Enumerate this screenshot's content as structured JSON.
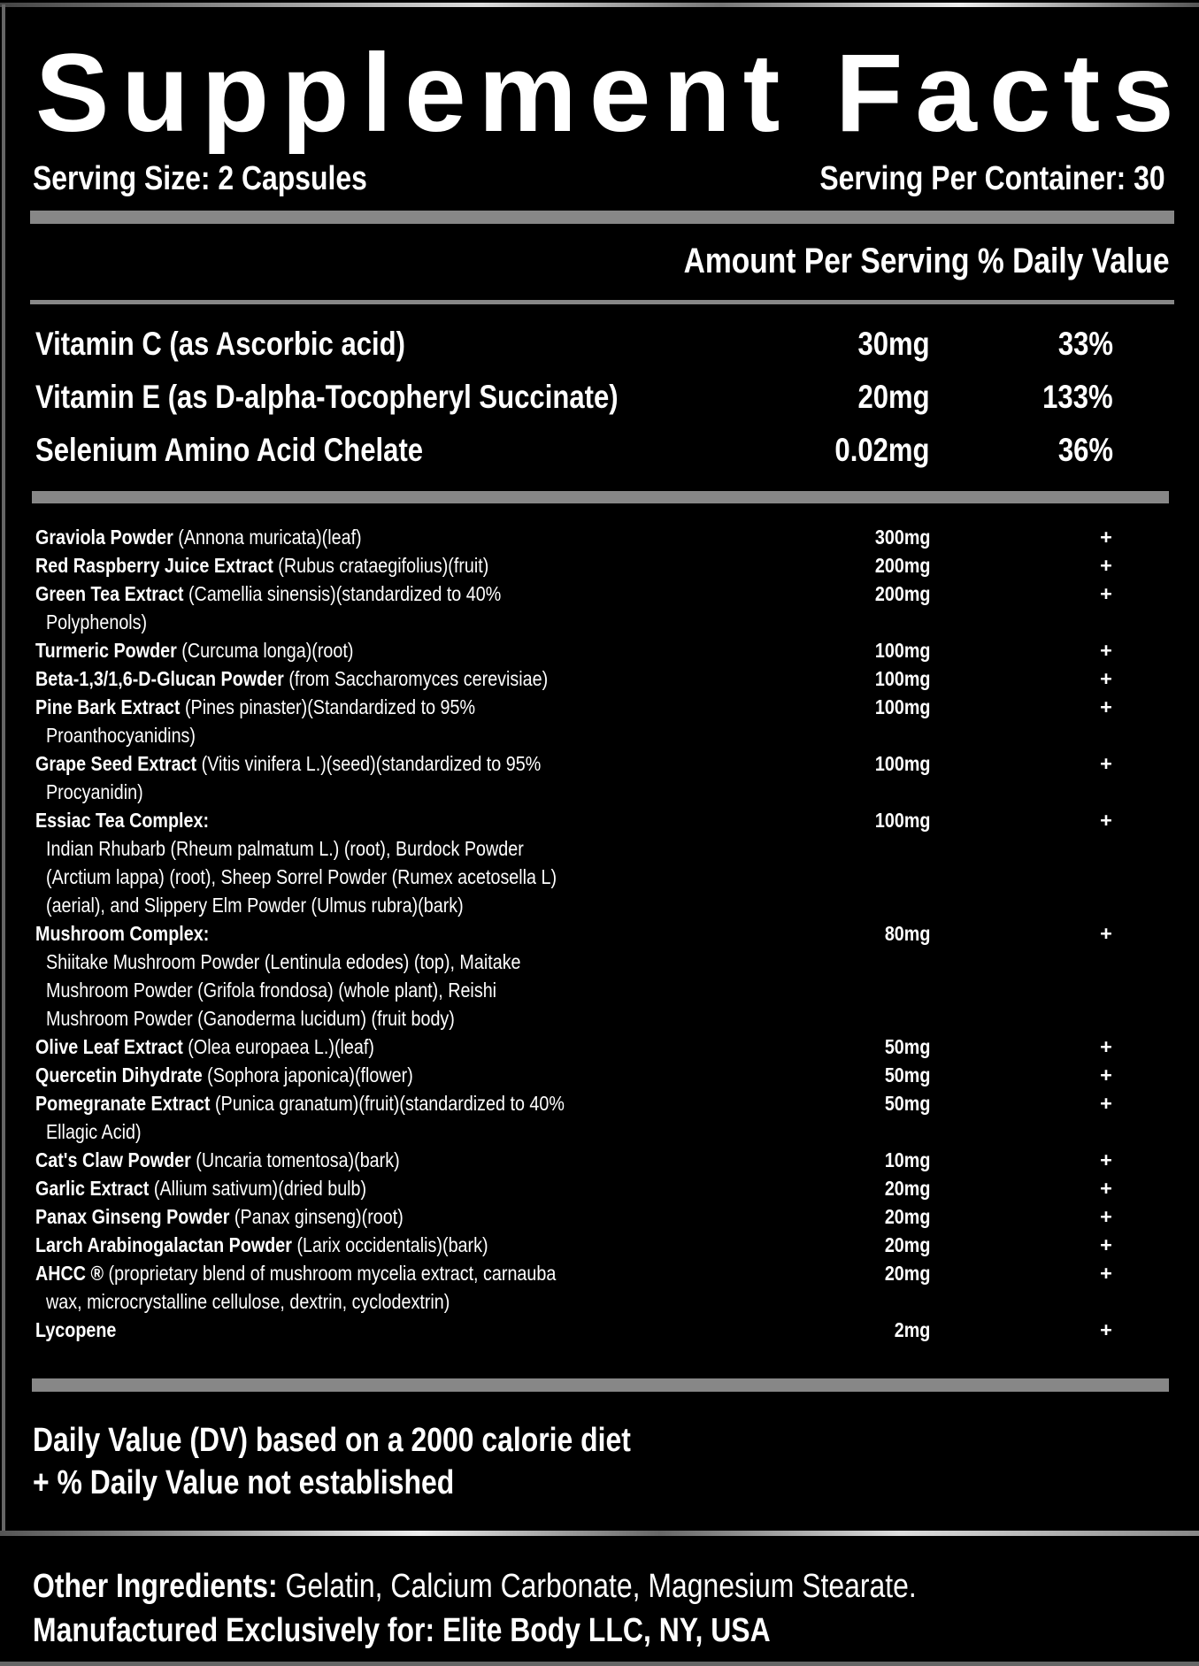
{
  "title": "Supplement Facts",
  "serving_size": "Serving Size: 2 Capsules",
  "servings_per_container": "Serving Per Container: 30",
  "amount_header": "Amount Per Serving % Daily Value",
  "vitamins": [
    {
      "name": "Vitamin C (as Ascorbic acid)",
      "amount": "30mg",
      "dv": "33%"
    },
    {
      "name": "Vitamin E (as D-alpha-Tocopheryl Succinate)",
      "amount": "20mg",
      "dv": "133%"
    },
    {
      "name": "Selenium Amino Acid Chelate",
      "amount": "0.02mg",
      "dv": "36%"
    }
  ],
  "ingredients": [
    {
      "name": "Graviola Powder",
      "desc": " (Annona muricata)(leaf)",
      "cont": [],
      "amount": "300mg",
      "dv": "+"
    },
    {
      "name": "Red Raspberry Juice Extract",
      "desc": " (Rubus crataegifolius)(fruit)",
      "cont": [],
      "amount": "200mg",
      "dv": "+"
    },
    {
      "name": "Green Tea Extract",
      "desc": " (Camellia sinensis)(standardized to 40%",
      "cont": [
        "Polyphenols)"
      ],
      "amount": "200mg",
      "dv": "+"
    },
    {
      "name": "Turmeric Powder",
      "desc": " (Curcuma longa)(root)",
      "cont": [],
      "amount": "100mg",
      "dv": "+"
    },
    {
      "name": "Beta-1,3/1,6-D-Glucan Powder",
      "desc": " (from Saccharomyces cerevisiae)",
      "cont": [],
      "amount": "100mg",
      "dv": "+"
    },
    {
      "name": "Pine Bark Extract",
      "desc": " (Pines pinaster)(Standardized to 95%",
      "cont": [
        "Proanthocyanidins)"
      ],
      "amount": "100mg",
      "dv": "+"
    },
    {
      "name": "Grape Seed Extract",
      "desc": " (Vitis vinifera L.)(seed)(standardized to 95%",
      "cont": [
        "Procyanidin)"
      ],
      "amount": "100mg",
      "dv": "+"
    },
    {
      "name": "Essiac Tea Complex:",
      "desc": "",
      "cont": [
        "Indian Rhubarb (Rheum palmatum L.) (root), Burdock Powder",
        "(Arctium lappa) (root), Sheep Sorrel Powder (Rumex acetosella L)",
        "(aerial), and Slippery Elm Powder (Ulmus rubra)(bark)"
      ],
      "amount": "100mg",
      "dv": "+"
    },
    {
      "name": "Mushroom Complex:",
      "desc": "",
      "cont": [
        "Shiitake Mushroom Powder (Lentinula edodes) (top), Maitake",
        "Mushroom Powder (Grifola frondosa) (whole plant), Reishi",
        "Mushroom Powder (Ganoderma lucidum) (fruit body)"
      ],
      "amount": "80mg",
      "dv": "+"
    },
    {
      "name": "Olive Leaf Extract",
      "desc": " (Olea europaea L.)(leaf)",
      "cont": [],
      "amount": "50mg",
      "dv": "+"
    },
    {
      "name": "Quercetin Dihydrate",
      "desc": " (Sophora japonica)(flower)",
      "cont": [],
      "amount": "50mg",
      "dv": "+"
    },
    {
      "name": "Pomegranate Extract",
      "desc": " (Punica granatum)(fruit)(standardized to 40%",
      "cont": [
        "Ellagic Acid)"
      ],
      "amount": "50mg",
      "dv": "+"
    },
    {
      "name": "Cat's Claw Powder",
      "desc": " (Uncaria tomentosa)(bark)",
      "cont": [],
      "amount": "10mg",
      "dv": "+"
    },
    {
      "name": "Garlic Extract",
      "desc": " (Allium sativum)(dried bulb)",
      "cont": [],
      "amount": "20mg",
      "dv": "+"
    },
    {
      "name": "Panax Ginseng Powder",
      "desc": " (Panax ginseng)(root)",
      "cont": [],
      "amount": "20mg",
      "dv": "+"
    },
    {
      "name": "Larch Arabinogalactan Powder",
      "desc": " (Larix occidentalis)(bark)",
      "cont": [],
      "amount": "20mg",
      "dv": "+"
    },
    {
      "name": "AHCC ®",
      "desc": " (proprietary blend of mushroom mycelia extract, carnauba",
      "cont": [
        "wax, microcrystalline cellulose, dextrin, cyclodextrin)"
      ],
      "amount": "20mg",
      "dv": "+"
    },
    {
      "name": "Lycopene",
      "desc": "",
      "cont": [],
      "amount": "2mg",
      "dv": "+"
    }
  ],
  "footnotes": {
    "dv_basis": "Daily Value (DV) based on a 2000 calorie diet",
    "not_established": "+ % Daily Value not established"
  },
  "other_ingredients": {
    "label": "Other Ingredients:",
    "value": " Gelatin, Calcium Carbonate, Magnesium Stearate."
  },
  "manufacturer": "Manufactured Exclusively for: Elite Body LLC, NY, USA",
  "colors": {
    "background": "#000000",
    "text": "#ffffff",
    "divider": "#878787"
  }
}
